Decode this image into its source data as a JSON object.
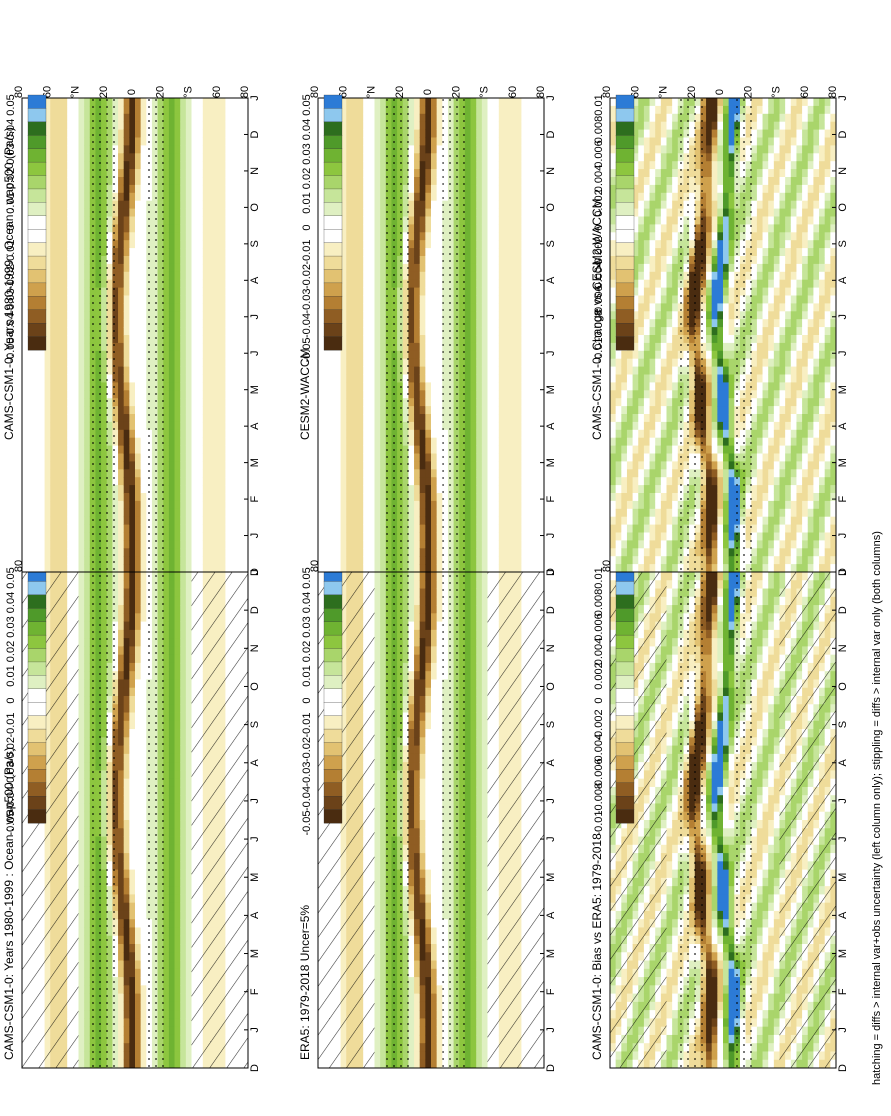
{
  "footer_note": "hatching = diffs > internal var+obs uncertainty (left column only); stippling = diffs > internal var only (both columns)",
  "chart_data": [
    {
      "type": "heatmap",
      "panel": "left-top",
      "title": "CAMS-CSM1-0: Years 1980-1999 : Ocean : wap500 (Pa/s)",
      "x_ticks": [
        "D",
        "J",
        "F",
        "M",
        "A",
        "M",
        "J",
        "J",
        "A",
        "S",
        "O",
        "N",
        "D",
        "J"
      ],
      "y_ticks": [
        "80",
        "60",
        "°N",
        "20",
        "0",
        "20",
        "°S",
        "60",
        "80"
      ],
      "colorbar": [
        "0.05",
        "0.04",
        "0.03",
        "0.02",
        "0.01",
        "0",
        "-0.01",
        "-0.02",
        "-0.03",
        "-0.04",
        "-0.05"
      ],
      "hatching": true,
      "stippling": true
    },
    {
      "type": "heatmap",
      "panel": "right-top",
      "title": "CAMS-CSM1-0: Years 1980-1999 : Ocean : wap500 (Pa/s)",
      "x_ticks": [
        "D",
        "J",
        "F",
        "M",
        "A",
        "M",
        "J",
        "J",
        "A",
        "S",
        "O",
        "N",
        "D",
        "J"
      ],
      "y_ticks": [
        "80",
        "60",
        "°N",
        "20",
        "0",
        "20",
        "°S",
        "60",
        "80"
      ],
      "colorbar": [
        "0.05",
        "0.04",
        "0.03",
        "0.02",
        "0.01",
        "0",
        "-0.01",
        "-0.02",
        "-0.03",
        "-0.04",
        "-0.05"
      ],
      "hatching": false,
      "stippling": true
    },
    {
      "type": "heatmap",
      "panel": "left-middle",
      "title": "ERA5: 1979-2018 Uncer=5%",
      "x_ticks": [
        "D",
        "J",
        "F",
        "M",
        "A",
        "M",
        "J",
        "J",
        "A",
        "S",
        "O",
        "N",
        "D",
        "J"
      ],
      "y_ticks": [
        "80",
        "60",
        "°N",
        "20",
        "0",
        "20",
        "°S",
        "60",
        "80"
      ],
      "colorbar": [
        "0.05",
        "0.04",
        "0.03",
        "0.02",
        "0.01",
        "0",
        "-0.01",
        "-0.02",
        "-0.03",
        "-0.04",
        "-0.05"
      ],
      "hatching": true,
      "stippling": true
    },
    {
      "type": "heatmap",
      "panel": "right-middle",
      "title": "CESM2-WACCM",
      "x_ticks": [
        "D",
        "J",
        "F",
        "M",
        "A",
        "M",
        "J",
        "J",
        "A",
        "S",
        "O",
        "N",
        "D",
        "J"
      ],
      "y_ticks": [
        "80",
        "60",
        "°N",
        "20",
        "0",
        "20",
        "°S",
        "60",
        "80"
      ],
      "colorbar": [
        "0.05",
        "0.04",
        "0.03",
        "0.02",
        "0.01",
        "0",
        "-0.01",
        "-0.02",
        "-0.03",
        "-0.04",
        "-0.05"
      ],
      "hatching": false,
      "stippling": true
    },
    {
      "type": "heatmap",
      "panel": "left-bottom",
      "title": "CAMS-CSM1-0: Bias vs ERA5: 1979-2018",
      "x_ticks": [
        "D",
        "J",
        "F",
        "M",
        "A",
        "M",
        "J",
        "J",
        "A",
        "S",
        "O",
        "N",
        "D",
        "J"
      ],
      "y_ticks": [
        "80",
        "60",
        "°N",
        "20",
        "0",
        "20",
        "°S",
        "60",
        "80"
      ],
      "colorbar": [
        "0.01",
        "0.008",
        "0.006",
        "0.004",
        "0.002",
        "0",
        "-0.002",
        "-0.004",
        "-0.006",
        "-0.008",
        "-0.01"
      ],
      "hatching": true,
      "stippling": true
    },
    {
      "type": "heatmap",
      "panel": "right-bottom",
      "title": "CAMS-CSM1-0: Change vs CESM2-WACCM",
      "x_ticks": [
        "D",
        "J",
        "F",
        "M",
        "A",
        "M",
        "J",
        "J",
        "A",
        "S",
        "O",
        "N",
        "D",
        "J"
      ],
      "y_ticks": [
        "80",
        "60",
        "°N",
        "20",
        "0",
        "20",
        "°S",
        "60",
        "80"
      ],
      "colorbar": [
        "0.01",
        "0.008",
        "0.006",
        "0.004",
        "0.002",
        "0",
        "-0.002",
        "-0.004",
        "-0.006",
        "-0.008",
        "-0.01"
      ],
      "hatching": false,
      "stippling": true
    }
  ],
  "palette": [
    "#2c7bd6",
    "#8ec8ee",
    "#2d6e1e",
    "#4f9a2a",
    "#6fb332",
    "#8dc63f",
    "#a9d56b",
    "#c6e59a",
    "#dff0c2",
    "#ffffff",
    "#ffffff",
    "#f8efc2",
    "#efdc9a",
    "#e2c272",
    "#cfa14d",
    "#b47f33",
    "#8f5d23",
    "#6b4219",
    "#4a2c10"
  ]
}
